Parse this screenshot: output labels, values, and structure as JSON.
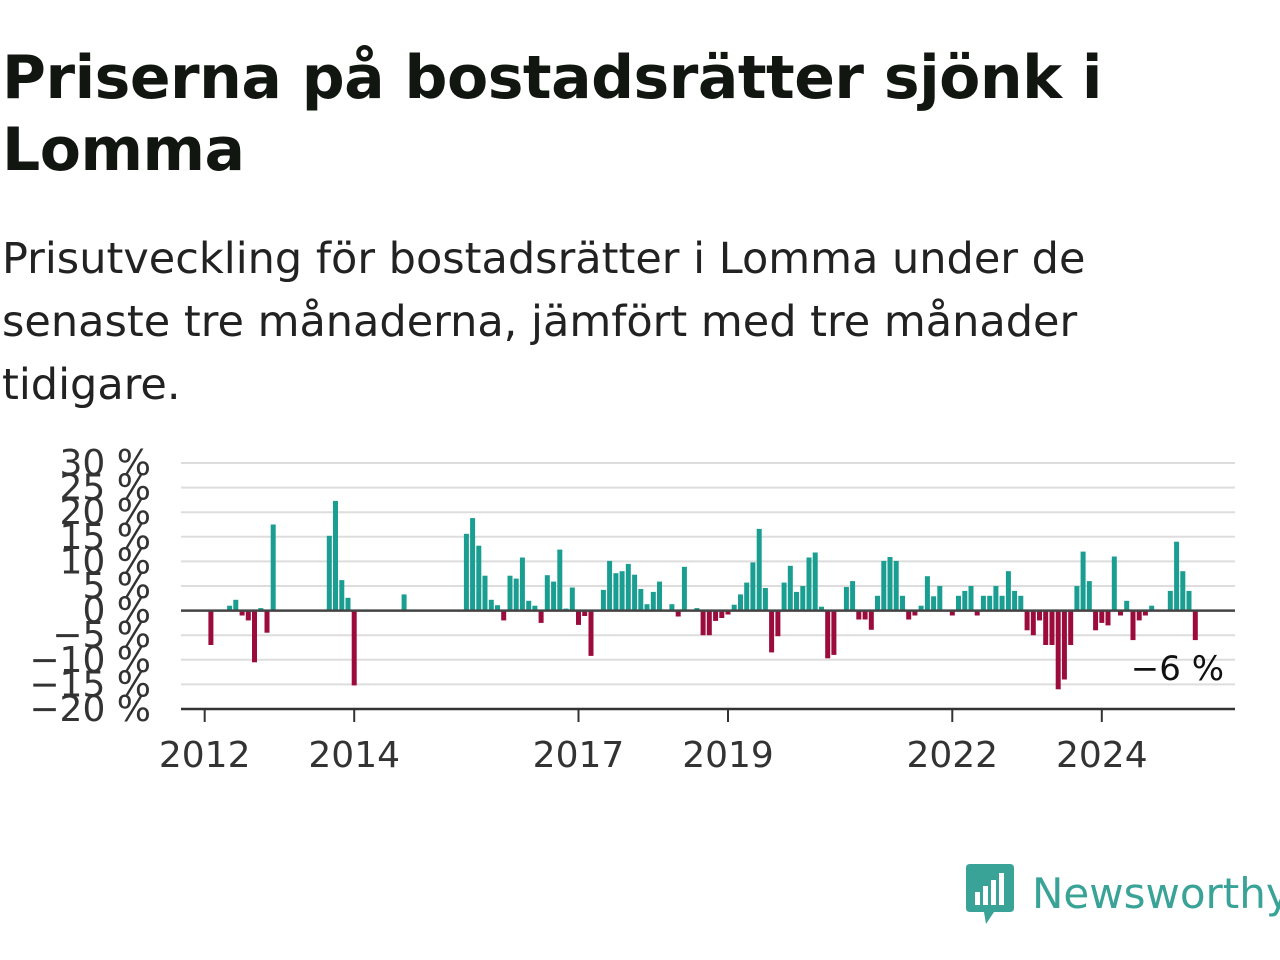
{
  "title": "Priserna på bostadsrätter sjönk i Lomma",
  "subtitle": "Prisutveckling för bostadsrätter i Lomma under de senaste tre månaderna, jämfört med tre månader tidigare.",
  "brand": {
    "name": "Newsworthy",
    "icon": "newsworthy-bar-chart-icon",
    "color": "#3aa397"
  },
  "chart_data": {
    "type": "bar",
    "title": "Priserna på bostadsrätter sjönk i Lomma",
    "subtitle": "Prisutveckling för bostadsrätter i Lomma under de senaste tre månaderna, jämfört med tre månader tidigare.",
    "xlabel": "",
    "ylabel": "",
    "ylim": [
      -20,
      30
    ],
    "y_unit": "%",
    "y_ticks": [
      30,
      25,
      20,
      15,
      10,
      5,
      0,
      -5,
      -10,
      -15,
      -20
    ],
    "y_tick_labels": [
      "30 %",
      "25 %",
      "20 %",
      "15 %",
      "10 %",
      "5 %",
      "0 %",
      "−5 %",
      "−10 %",
      "−15 %",
      "−20 %"
    ],
    "x_ticks": [
      "2012",
      "2014",
      "2017",
      "2019",
      "2022",
      "2024"
    ],
    "x_start": "2011-10",
    "x_end": "2025-06",
    "grid": true,
    "positive_color": "#1a9e92",
    "negative_color": "#9b0b3c",
    "end_label": "−6 %",
    "series": [
      {
        "values": [
          {
            "x": "2012-02",
            "y": -7.0
          },
          {
            "x": "2012-05",
            "y": 1.0
          },
          {
            "x": "2012-06",
            "y": 2.2
          },
          {
            "x": "2012-07",
            "y": -1.0
          },
          {
            "x": "2012-08",
            "y": -2.0
          },
          {
            "x": "2012-09",
            "y": -10.5
          },
          {
            "x": "2012-10",
            "y": 0.5
          },
          {
            "x": "2012-11",
            "y": -4.5
          },
          {
            "x": "2012-12",
            "y": 17.5
          },
          {
            "x": "2013-09",
            "y": 15.2
          },
          {
            "x": "2013-10",
            "y": 22.3
          },
          {
            "x": "2013-11",
            "y": 6.2
          },
          {
            "x": "2013-12",
            "y": 2.6
          },
          {
            "x": "2014-01",
            "y": -15.2
          },
          {
            "x": "2014-09",
            "y": 3.3
          },
          {
            "x": "2015-07",
            "y": 15.6
          },
          {
            "x": "2015-08",
            "y": 18.8
          },
          {
            "x": "2015-09",
            "y": 13.2
          },
          {
            "x": "2015-10",
            "y": 7.1
          },
          {
            "x": "2015-11",
            "y": 2.2
          },
          {
            "x": "2015-12",
            "y": 1.1
          },
          {
            "x": "2016-01",
            "y": -2.0
          },
          {
            "x": "2016-02",
            "y": 7.1
          },
          {
            "x": "2016-03",
            "y": 6.5
          },
          {
            "x": "2016-04",
            "y": 10.8
          },
          {
            "x": "2016-05",
            "y": 2.0
          },
          {
            "x": "2016-06",
            "y": 1.0
          },
          {
            "x": "2016-07",
            "y": -2.5
          },
          {
            "x": "2016-08",
            "y": 7.2
          },
          {
            "x": "2016-09",
            "y": 5.9
          },
          {
            "x": "2016-10",
            "y": 12.4
          },
          {
            "x": "2016-11",
            "y": 0.4
          },
          {
            "x": "2016-12",
            "y": 4.7
          },
          {
            "x": "2017-01",
            "y": -2.9
          },
          {
            "x": "2017-02",
            "y": -1.1
          },
          {
            "x": "2017-03",
            "y": -9.2
          },
          {
            "x": "2017-05",
            "y": 4.2
          },
          {
            "x": "2017-06",
            "y": 10.1
          },
          {
            "x": "2017-07",
            "y": 7.6
          },
          {
            "x": "2017-08",
            "y": 8.0
          },
          {
            "x": "2017-09",
            "y": 9.5
          },
          {
            "x": "2017-10",
            "y": 7.3
          },
          {
            "x": "2017-11",
            "y": 4.4
          },
          {
            "x": "2017-12",
            "y": 1.3
          },
          {
            "x": "2018-01",
            "y": 3.8
          },
          {
            "x": "2018-02",
            "y": 5.9
          },
          {
            "x": "2018-04",
            "y": 1.3
          },
          {
            "x": "2018-05",
            "y": -1.2
          },
          {
            "x": "2018-06",
            "y": 8.9
          },
          {
            "x": "2018-08",
            "y": 0.5
          },
          {
            "x": "2018-09",
            "y": -5.0
          },
          {
            "x": "2018-10",
            "y": -5.0
          },
          {
            "x": "2018-11",
            "y": -2.1
          },
          {
            "x": "2018-12",
            "y": -1.5
          },
          {
            "x": "2019-01",
            "y": -0.8
          },
          {
            "x": "2019-02",
            "y": 1.2
          },
          {
            "x": "2019-03",
            "y": 3.3
          },
          {
            "x": "2019-04",
            "y": 5.7
          },
          {
            "x": "2019-05",
            "y": 9.8
          },
          {
            "x": "2019-06",
            "y": 16.6
          },
          {
            "x": "2019-07",
            "y": 4.6
          },
          {
            "x": "2019-08",
            "y": -8.5
          },
          {
            "x": "2019-09",
            "y": -5.2
          },
          {
            "x": "2019-10",
            "y": 5.7
          },
          {
            "x": "2019-11",
            "y": 9.1
          },
          {
            "x": "2019-12",
            "y": 3.8
          },
          {
            "x": "2020-01",
            "y": 5.0
          },
          {
            "x": "2020-02",
            "y": 10.8
          },
          {
            "x": "2020-03",
            "y": 11.8
          },
          {
            "x": "2020-04",
            "y": 0.8
          },
          {
            "x": "2020-05",
            "y": -9.7
          },
          {
            "x": "2020-06",
            "y": -9.0
          },
          {
            "x": "2020-08",
            "y": 4.8
          },
          {
            "x": "2020-09",
            "y": 6.0
          },
          {
            "x": "2020-10",
            "y": -1.8
          },
          {
            "x": "2020-11",
            "y": -1.8
          },
          {
            "x": "2020-12",
            "y": -3.9
          },
          {
            "x": "2021-01",
            "y": 3.0
          },
          {
            "x": "2021-02",
            "y": 10.1
          },
          {
            "x": "2021-03",
            "y": 10.9
          },
          {
            "x": "2021-04",
            "y": 10.1
          },
          {
            "x": "2021-05",
            "y": 3.0
          },
          {
            "x": "2021-06",
            "y": -1.8
          },
          {
            "x": "2021-07",
            "y": -1.0
          },
          {
            "x": "2021-08",
            "y": 1.0
          },
          {
            "x": "2021-09",
            "y": 7.0
          },
          {
            "x": "2021-10",
            "y": 2.9
          },
          {
            "x": "2021-11",
            "y": 5.0
          },
          {
            "x": "2022-01",
            "y": -1.0
          },
          {
            "x": "2022-02",
            "y": 3.0
          },
          {
            "x": "2022-03",
            "y": 4.0
          },
          {
            "x": "2022-04",
            "y": 5.0
          },
          {
            "x": "2022-05",
            "y": -1.0
          },
          {
            "x": "2022-06",
            "y": 3.0
          },
          {
            "x": "2022-07",
            "y": 3.0
          },
          {
            "x": "2022-08",
            "y": 5.0
          },
          {
            "x": "2022-09",
            "y": 3.0
          },
          {
            "x": "2022-10",
            "y": 8.0
          },
          {
            "x": "2022-11",
            "y": 4.0
          },
          {
            "x": "2022-12",
            "y": 3.0
          },
          {
            "x": "2023-01",
            "y": -4.0
          },
          {
            "x": "2023-02",
            "y": -5.0
          },
          {
            "x": "2023-03",
            "y": -2.0
          },
          {
            "x": "2023-04",
            "y": -7.0
          },
          {
            "x": "2023-05",
            "y": -7.0
          },
          {
            "x": "2023-06",
            "y": -16.0
          },
          {
            "x": "2023-07",
            "y": -14.0
          },
          {
            "x": "2023-08",
            "y": -7.0
          },
          {
            "x": "2023-09",
            "y": 5.0
          },
          {
            "x": "2023-10",
            "y": 12.0
          },
          {
            "x": "2023-11",
            "y": 6.0
          },
          {
            "x": "2023-12",
            "y": -4.0
          },
          {
            "x": "2024-01",
            "y": -2.5
          },
          {
            "x": "2024-02",
            "y": -3.0
          },
          {
            "x": "2024-03",
            "y": 11.0
          },
          {
            "x": "2024-04",
            "y": -1.0
          },
          {
            "x": "2024-05",
            "y": 2.0
          },
          {
            "x": "2024-06",
            "y": -6.0
          },
          {
            "x": "2024-07",
            "y": -2.0
          },
          {
            "x": "2024-08",
            "y": -1.0
          },
          {
            "x": "2024-09",
            "y": 1.0
          },
          {
            "x": "2024-12",
            "y": 4.0
          },
          {
            "x": "2025-01",
            "y": 14.0
          },
          {
            "x": "2025-02",
            "y": 8.0
          },
          {
            "x": "2025-03",
            "y": 4.0
          },
          {
            "x": "2025-04",
            "y": -6.0
          }
        ]
      }
    ]
  }
}
